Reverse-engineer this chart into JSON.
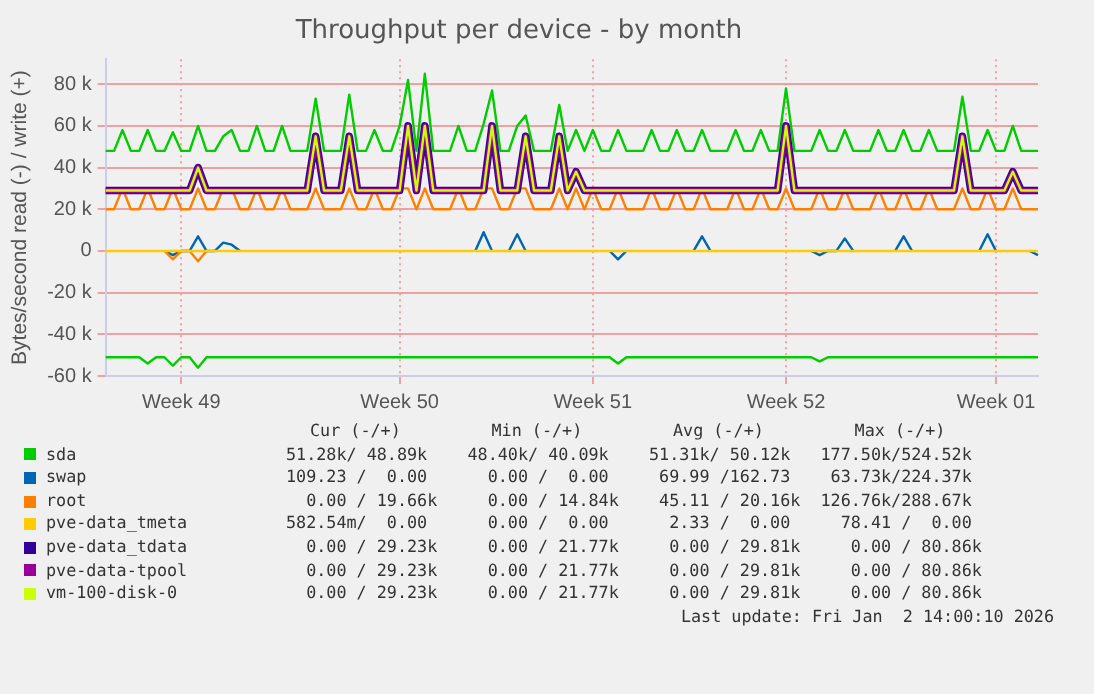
{
  "chart_data": {
    "type": "line",
    "title": "Throughput per device - by month",
    "ylabel": "Bytes/second read (-) / write (+)",
    "annotations": [
      "Cur (-/+)         Min (-/+)         Avg (-/+)         Max (-/+)",
      "51.28k/ 48.89k    48.40k/ 40.09k    51.31k/ 50.12k   177.50k/524.52k",
      "109.23 /  0.00      0.00 /  0.00     69.99 /162.73    63.73k/224.37k",
      "  0.00 / 19.66k     0.00 / 14.84k    45.11 / 20.16k  126.76k/288.67k",
      "582.54m/  0.00      0.00 /  0.00      2.33 /  0.00     78.41 /  0.00",
      "  0.00 / 29.23k     0.00 / 21.77k     0.00 / 29.81k     0.00 / 80.86k",
      "  0.00 / 29.23k     0.00 / 21.77k     0.00 / 29.81k     0.00 / 80.86k",
      "  0.00 / 29.23k     0.00 / 21.77k     0.00 / 29.81k     0.00 / 80.86k",
      "Last update: Fri Jan  2 14:00:10 2026"
    ],
    "categories": [
      null,
      null,
      null,
      null,
      null,
      null,
      null,
      null,
      null,
      "Week 49",
      null,
      null,
      null,
      null,
      null,
      null,
      null,
      null,
      null,
      null,
      null,
      null,
      null,
      null,
      null,
      null,
      null,
      null,
      null,
      null,
      null,
      null,
      null,
      null,
      null,
      "Week 50",
      null,
      null,
      null,
      null,
      null,
      null,
      null,
      null,
      null,
      null,
      null,
      null,
      null,
      null,
      null,
      null,
      null,
      null,
      null,
      null,
      null,
      null,
      "Week 51",
      null,
      null,
      null,
      null,
      null,
      null,
      null,
      null,
      null,
      null,
      null,
      null,
      null,
      null,
      null,
      null,
      null,
      null,
      null,
      null,
      null,
      null,
      "Week 52",
      null,
      null,
      null,
      null,
      null,
      null,
      null,
      null,
      null,
      null,
      null,
      null,
      null,
      null,
      null,
      null,
      null,
      null,
      null,
      null,
      null,
      null,
      null,
      null,
      "Week 01",
      null,
      null,
      null,
      null,
      null
    ],
    "ylim": [
      -60000,
      92000
    ],
    "yticks": [
      {
        "value": -60000,
        "label": "-60 k"
      },
      {
        "value": -40000,
        "label": "-40 k"
      },
      {
        "value": -20000,
        "label": "-20 k"
      },
      {
        "value": 0,
        "label": "0"
      },
      {
        "value": 20000,
        "label": "20 k"
      },
      {
        "value": 40000,
        "label": "40 k"
      },
      {
        "value": 60000,
        "label": "60 k"
      },
      {
        "value": 80000,
        "label": "80 k"
      }
    ],
    "grid": true,
    "legend": "bottom",
    "marker": "none",
    "line_style": "solid",
    "series": [
      {
        "name": "sda",
        "color": "#00cc00",
        "values": [
          48000,
          48000,
          58000,
          48000,
          48000,
          58000,
          48000,
          48000,
          57000,
          48000,
          48000,
          60000,
          48000,
          48000,
          55000,
          58000,
          48000,
          48000,
          60000,
          48000,
          48000,
          60000,
          48000,
          48000,
          48000,
          73000,
          48000,
          48000,
          48000,
          75000,
          48000,
          48000,
          58000,
          48000,
          48000,
          60000,
          82000,
          48000,
          85000,
          48000,
          48000,
          48000,
          60000,
          48000,
          48000,
          61000,
          77000,
          48000,
          48000,
          60000,
          65000,
          48000,
          48000,
          48000,
          70000,
          48000,
          58000,
          48000,
          58000,
          48000,
          48000,
          58000,
          48000,
          48000,
          48000,
          58000,
          48000,
          48000,
          58000,
          48000,
          48000,
          58000,
          48000,
          48000,
          48000,
          58000,
          48000,
          48000,
          58000,
          48000,
          48000,
          78000,
          48000,
          48000,
          48000,
          58000,
          48000,
          48000,
          58000,
          48000,
          48000,
          48000,
          58000,
          48000,
          48000,
          58000,
          48000,
          48000,
          58000,
          48000,
          48000,
          48000,
          74000,
          48000,
          48000,
          58000,
          48000,
          48000,
          60000,
          48000,
          48000,
          48000
        ]
      },
      {
        "color": "#00cc00",
        "values": [
          -51000,
          -51000,
          -51000,
          -51000,
          -51000,
          -54000,
          -51000,
          -51000,
          -55000,
          -51000,
          -51000,
          -56000,
          -51000,
          -51000,
          -51000,
          -51000,
          -51000,
          -51000,
          -51000,
          -51000,
          -51000,
          -51000,
          -51000,
          -51000,
          -51000,
          -51000,
          -51000,
          -51000,
          -51000,
          -51000,
          -51000,
          -51000,
          -51000,
          -51000,
          -51000,
          -51000,
          -51000,
          -51000,
          -51000,
          -51000,
          -51000,
          -51000,
          -51000,
          -51000,
          -51000,
          -51000,
          -51000,
          -51000,
          -51000,
          -51000,
          -51000,
          -51000,
          -51000,
          -51000,
          -51000,
          -51000,
          -51000,
          -51000,
          -51000,
          -51000,
          -51000,
          -54000,
          -51000,
          -51000,
          -51000,
          -51000,
          -51000,
          -51000,
          -51000,
          -51000,
          -51000,
          -51000,
          -51000,
          -51000,
          -51000,
          -51000,
          -51000,
          -51000,
          -51000,
          -51000,
          -51000,
          -51000,
          -51000,
          -51000,
          -51000,
          -53000,
          -51000,
          -51000,
          -51000,
          -51000,
          -51000,
          -51000,
          -51000,
          -51000,
          -51000,
          -51000,
          -51000,
          -51000,
          -51000,
          -51000,
          -51000,
          -51000,
          -51000,
          -51000,
          -51000,
          -51000,
          -51000,
          -51000,
          -51000,
          -51000,
          -51000,
          -51000
        ]
      },
      {
        "name": "swap",
        "color": "#0066b3",
        "values": [
          null,
          null,
          null,
          null,
          null,
          null,
          null,
          0,
          -2000,
          0,
          0,
          7000,
          0,
          0,
          4000,
          3000,
          0,
          null,
          null,
          null,
          null,
          null,
          null,
          null,
          null,
          null,
          null,
          null,
          null,
          null,
          null,
          null,
          null,
          null,
          null,
          null,
          null,
          null,
          null,
          null,
          null,
          null,
          null,
          null,
          0,
          9000,
          0,
          null,
          0,
          8000,
          0,
          null,
          null,
          null,
          null,
          null,
          null,
          null,
          null,
          null,
          0,
          -4000,
          0,
          null,
          null,
          null,
          null,
          null,
          null,
          null,
          0,
          7000,
          0,
          null,
          null,
          null,
          null,
          null,
          null,
          null,
          null,
          null,
          null,
          null,
          0,
          -2000,
          0,
          0,
          6000,
          0,
          null,
          null,
          null,
          null,
          0,
          7000,
          0,
          null,
          null,
          null,
          null,
          null,
          null,
          null,
          0,
          8000,
          0,
          null,
          null,
          null,
          0,
          -2000
        ]
      },
      {
        "name": "root",
        "color": "#ff8000",
        "values": [
          20000,
          20000,
          30000,
          20000,
          20000,
          30000,
          20000,
          20000,
          30000,
          20000,
          20000,
          30000,
          20000,
          20000,
          30000,
          30000,
          20000,
          20000,
          30000,
          20000,
          20000,
          30000,
          20000,
          20000,
          20000,
          30000,
          20000,
          20000,
          20000,
          30000,
          20000,
          20000,
          30000,
          20000,
          20000,
          30000,
          30000,
          20000,
          30000,
          20000,
          20000,
          20000,
          30000,
          20000,
          20000,
          30000,
          30000,
          20000,
          20000,
          30000,
          30000,
          20000,
          20000,
          20000,
          30000,
          20000,
          30000,
          20000,
          30000,
          20000,
          20000,
          30000,
          20000,
          20000,
          20000,
          30000,
          20000,
          20000,
          30000,
          20000,
          20000,
          30000,
          20000,
          20000,
          20000,
          30000,
          20000,
          20000,
          30000,
          20000,
          20000,
          30000,
          20000,
          20000,
          20000,
          30000,
          20000,
          20000,
          30000,
          20000,
          20000,
          20000,
          30000,
          20000,
          20000,
          30000,
          20000,
          20000,
          30000,
          20000,
          20000,
          20000,
          30000,
          20000,
          20000,
          30000,
          20000,
          20000,
          30000,
          20000,
          20000,
          20000
        ]
      },
      {
        "color": "#ff8000",
        "values": [
          null,
          null,
          null,
          null,
          null,
          null,
          null,
          0,
          -4000,
          0,
          0,
          -5000,
          0,
          null,
          null,
          null,
          null,
          null,
          null,
          null,
          null,
          null,
          null,
          null,
          null,
          null,
          null,
          null,
          null,
          null,
          null,
          null,
          null,
          null,
          null,
          null,
          null,
          null,
          null,
          null,
          null,
          null,
          null,
          null,
          null,
          null,
          null,
          null,
          null,
          null,
          null,
          null,
          null,
          null,
          null,
          null,
          null,
          null,
          null,
          null,
          null,
          null,
          null,
          null,
          null,
          null,
          null,
          null,
          null,
          null,
          null,
          null,
          null,
          null,
          null,
          null,
          null,
          null,
          null,
          null,
          null,
          null,
          null,
          null,
          null,
          null,
          null,
          null,
          null,
          null,
          null,
          null,
          null,
          null,
          null,
          null,
          null,
          null,
          null,
          null,
          null,
          null,
          null,
          null,
          null,
          null,
          null,
          null,
          null,
          null,
          null,
          null
        ]
      },
      {
        "name": "pve-data_tmeta",
        "color": "#ffcc00",
        "values": [
          0,
          0,
          0,
          0,
          0,
          0,
          0,
          0,
          0,
          0,
          0,
          0,
          0,
          0,
          0,
          0,
          0,
          0,
          0,
          0,
          0,
          0,
          0,
          0,
          0,
          0,
          0,
          0,
          0,
          0,
          0,
          0,
          0,
          0,
          0,
          0,
          0,
          0,
          0,
          0,
          0,
          0,
          0,
          0,
          0,
          0,
          0,
          0,
          0,
          0,
          0,
          0,
          0,
          0,
          0,
          0,
          0,
          0,
          0,
          0,
          0,
          0,
          0,
          0,
          0,
          0,
          0,
          0,
          0,
          0,
          0,
          0,
          0,
          0,
          0,
          0,
          0,
          0,
          0,
          0,
          0,
          0,
          0,
          0,
          0,
          0,
          0,
          0,
          0,
          0,
          0,
          0,
          0,
          0,
          0,
          0,
          0,
          0,
          0,
          0,
          0,
          0,
          0,
          0,
          0,
          0,
          0,
          0,
          0,
          0,
          0,
          0
        ]
      },
      {
        "name": "pve-data_tdata",
        "color": "#330099",
        "values": [
          29000,
          29000,
          29000,
          29000,
          29000,
          29000,
          29000,
          29000,
          29000,
          29000,
          29000,
          40000,
          29000,
          29000,
          29000,
          29000,
          29000,
          29000,
          29000,
          29000,
          29000,
          29000,
          29000,
          29000,
          29000,
          55000,
          29000,
          29000,
          29000,
          55000,
          29000,
          29000,
          29000,
          29000,
          29000,
          29000,
          60000,
          29000,
          60000,
          29000,
          29000,
          29000,
          29000,
          29000,
          29000,
          29000,
          60000,
          29000,
          29000,
          29000,
          55000,
          29000,
          29000,
          29000,
          55000,
          29000,
          38000,
          29000,
          29000,
          29000,
          29000,
          29000,
          29000,
          29000,
          29000,
          29000,
          29000,
          29000,
          29000,
          29000,
          29000,
          29000,
          29000,
          29000,
          29000,
          29000,
          29000,
          29000,
          29000,
          29000,
          29000,
          60000,
          29000,
          29000,
          29000,
          29000,
          29000,
          29000,
          29000,
          29000,
          29000,
          29000,
          29000,
          29000,
          29000,
          29000,
          29000,
          29000,
          29000,
          29000,
          29000,
          29000,
          55000,
          29000,
          29000,
          29000,
          29000,
          29000,
          38000,
          29000,
          29000,
          29000
        ]
      },
      {
        "name": "pve-data-tpool",
        "color": "#990099",
        "values": [
          29000,
          29000,
          29000,
          29000,
          29000,
          29000,
          29000,
          29000,
          29000,
          29000,
          29000,
          40000,
          29000,
          29000,
          29000,
          29000,
          29000,
          29000,
          29000,
          29000,
          29000,
          29000,
          29000,
          29000,
          29000,
          55000,
          29000,
          29000,
          29000,
          55000,
          29000,
          29000,
          29000,
          29000,
          29000,
          29000,
          60000,
          29000,
          60000,
          29000,
          29000,
          29000,
          29000,
          29000,
          29000,
          29000,
          60000,
          29000,
          29000,
          29000,
          55000,
          29000,
          29000,
          29000,
          55000,
          29000,
          38000,
          29000,
          29000,
          29000,
          29000,
          29000,
          29000,
          29000,
          29000,
          29000,
          29000,
          29000,
          29000,
          29000,
          29000,
          29000,
          29000,
          29000,
          29000,
          29000,
          29000,
          29000,
          29000,
          29000,
          29000,
          60000,
          29000,
          29000,
          29000,
          29000,
          29000,
          29000,
          29000,
          29000,
          29000,
          29000,
          29000,
          29000,
          29000,
          29000,
          29000,
          29000,
          29000,
          29000,
          29000,
          29000,
          55000,
          29000,
          29000,
          29000,
          29000,
          29000,
          38000,
          29000,
          29000,
          29000
        ]
      },
      {
        "name": "vm-100-disk-0",
        "color": "#ccff00",
        "values": [
          29000,
          29000,
          29000,
          29000,
          29000,
          29000,
          29000,
          29000,
          29000,
          29000,
          29000,
          40000,
          29000,
          29000,
          29000,
          29000,
          29000,
          29000,
          29000,
          29000,
          29000,
          29000,
          29000,
          29000,
          29000,
          55000,
          29000,
          29000,
          29000,
          55000,
          29000,
          29000,
          29000,
          29000,
          29000,
          29000,
          60000,
          29000,
          60000,
          29000,
          29000,
          29000,
          29000,
          29000,
          29000,
          29000,
          60000,
          29000,
          29000,
          29000,
          55000,
          29000,
          29000,
          29000,
          55000,
          29000,
          38000,
          29000,
          29000,
          29000,
          29000,
          29000,
          29000,
          29000,
          29000,
          29000,
          29000,
          29000,
          29000,
          29000,
          29000,
          29000,
          29000,
          29000,
          29000,
          29000,
          29000,
          29000,
          29000,
          29000,
          29000,
          60000,
          29000,
          29000,
          29000,
          29000,
          29000,
          29000,
          29000,
          29000,
          29000,
          29000,
          29000,
          29000,
          29000,
          29000,
          29000,
          29000,
          29000,
          29000,
          29000,
          29000,
          55000,
          29000,
          29000,
          29000,
          29000,
          29000,
          38000,
          29000,
          29000,
          29000
        ]
      }
    ]
  }
}
